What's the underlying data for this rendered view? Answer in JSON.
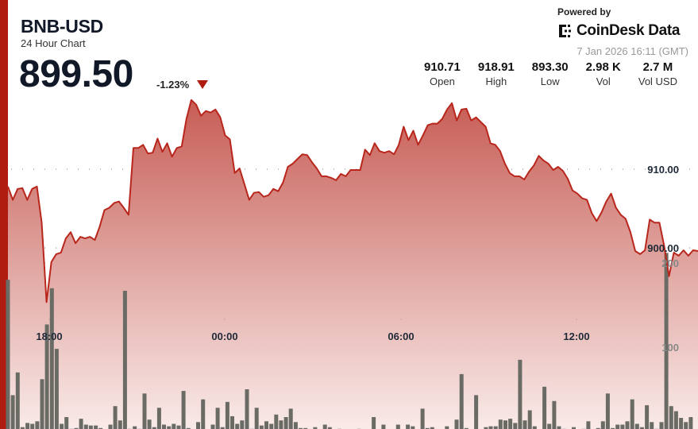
{
  "header": {
    "title": "BNB-USD",
    "subtitle": "24 Hour Chart",
    "price": "899.50",
    "change": "-1.23%",
    "change_direction": "down"
  },
  "branding": {
    "powered_by": "Powered by",
    "logo": "CoinDesk Data",
    "timestamp": "7 Jan 2026 16:11 (GMT)"
  },
  "stats": [
    {
      "value": "910.71",
      "label": "Open"
    },
    {
      "value": "918.91",
      "label": "High"
    },
    {
      "value": "893.30",
      "label": "Low"
    },
    {
      "value": "2.98 K",
      "label": "Vol"
    },
    {
      "value": "2.7 M",
      "label": "Vol USD"
    }
  ],
  "colors": {
    "accent": "#b01c10",
    "line": "#b8261c",
    "fill_top": "#c4544c",
    "fill_bottom": "#f8e8e6",
    "volume_bar": "#6b6b66"
  },
  "chart_data": {
    "type": "area",
    "x_ticks": [
      "18:00",
      "00:00",
      "06:00",
      "12:00"
    ],
    "price_ticks": [
      "910.00",
      "900.00"
    ],
    "volume_ticks": [
      "200",
      "100"
    ],
    "grid": "dotted",
    "price": [
      907.8,
      906.1,
      907.5,
      907.6,
      906.1,
      907.5,
      907.8,
      903.2,
      893.1,
      898.2,
      899.2,
      899.4,
      901.2,
      902.0,
      900.6,
      901.4,
      901.2,
      901.4,
      901.0,
      902.7,
      904.8,
      905.1,
      905.7,
      905.9,
      905.1,
      904.2,
      912.7,
      912.7,
      913.1,
      912.0,
      912.1,
      913.9,
      912.2,
      913.3,
      911.6,
      912.7,
      912.9,
      916.4,
      918.8,
      918.2,
      916.8,
      917.4,
      917.2,
      917.6,
      916.6,
      914.3,
      913.8,
      909.5,
      910.1,
      908.1,
      906.1,
      907.0,
      907.1,
      906.5,
      906.7,
      907.5,
      907.2,
      908.3,
      910.3,
      910.7,
      911.3,
      911.9,
      911.8,
      910.9,
      910.1,
      909.1,
      909.1,
      908.9,
      908.6,
      909.4,
      909.1,
      909.9,
      909.9,
      909.9,
      912.5,
      911.8,
      913.3,
      912.3,
      912.1,
      912.3,
      911.9,
      913.1,
      915.4,
      913.7,
      914.9,
      913.1,
      914.3,
      915.6,
      915.8,
      915.8,
      916.4,
      917.6,
      918.4,
      916.2,
      917.6,
      917.7,
      916.2,
      916.6,
      916.0,
      915.4,
      913.3,
      913.1,
      912.3,
      910.7,
      909.5,
      909.1,
      909.1,
      908.7,
      909.7,
      910.5,
      911.7,
      911.1,
      910.7,
      909.9,
      910.3,
      909.8,
      908.8,
      907.3,
      906.9,
      906.3,
      906.1,
      904.4,
      903.4,
      904.5,
      905.9,
      906.9,
      905.1,
      904.2,
      903.7,
      902.0,
      899.6,
      899.2,
      899.7,
      903.6,
      903.2,
      903.2,
      900.2,
      896.4,
      899.4,
      899.0,
      899.7,
      899.0,
      899.7,
      899.6
    ],
    "volume": [
      180,
      43,
      70,
      5,
      10,
      9,
      12,
      62,
      127,
      170,
      98,
      9,
      17,
      3,
      4,
      15,
      8,
      7,
      7,
      4,
      2,
      8,
      30,
      13,
      167,
      3,
      6,
      3,
      45,
      14,
      5,
      28,
      8,
      6,
      9,
      7,
      48,
      4,
      1,
      11,
      38,
      1,
      8,
      28,
      5,
      35,
      18,
      9,
      13,
      50,
      3,
      28,
      7,
      12,
      9,
      20,
      13,
      17,
      27,
      11,
      4,
      4,
      2,
      5,
      2,
      8,
      5,
      1,
      3,
      2,
      1,
      1,
      3,
      1,
      0,
      17,
      2,
      8,
      2,
      2,
      8,
      2,
      8,
      6,
      1,
      27,
      4,
      5,
      2,
      1,
      6,
      1,
      14,
      68,
      4,
      1,
      43,
      2,
      5,
      6,
      6,
      14,
      13,
      15,
      10,
      85,
      13,
      25,
      6,
      1,
      53,
      9,
      36,
      6,
      3,
      2,
      5,
      1,
      3,
      12,
      1,
      4,
      12,
      45,
      4,
      8,
      8,
      12,
      38,
      9,
      5,
      31,
      11,
      3,
      11,
      212,
      30,
      24,
      16,
      11,
      17,
      2
    ]
  }
}
